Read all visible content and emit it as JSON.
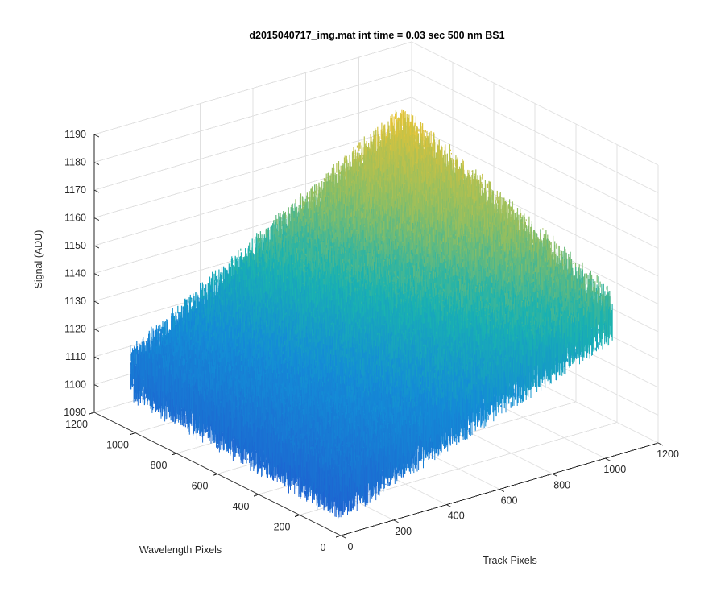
{
  "chart_data": {
    "type": "surface-3d",
    "title": "d2015040717_img.mat int time = 0.03 sec  500 nm BS1",
    "xlabel": "Track Pixels",
    "ylabel": "Wavelength Pixels",
    "zlabel": "Signal (ADU)",
    "x_ticks": [
      "0",
      "200",
      "400",
      "600",
      "800",
      "1000",
      "1200"
    ],
    "y_ticks": [
      "0",
      "200",
      "400",
      "600",
      "800",
      "1000",
      "1200"
    ],
    "z_ticks": [
      "1090",
      "1100",
      "1110",
      "1120",
      "1130",
      "1140",
      "1150",
      "1160",
      "1170",
      "1180",
      "1190"
    ],
    "xlim": [
      0,
      1200
    ],
    "ylim": [
      0,
      1200
    ],
    "zlim": [
      1090,
      1190
    ],
    "grid": true,
    "colormap": "parula",
    "surface": {
      "x_range": [
        1,
        1024
      ],
      "y_range": [
        1,
        1024
      ],
      "corner_values": {
        "x0_y0": 1105,
        "x1024_y0": 1141,
        "x0_y1024": 1111,
        "x1024_y1024": 1170
      },
      "noise_amplitude": 12
    },
    "colors": {
      "low": "#1f5fd1",
      "mid": "#1ab2b0",
      "high": "#f7c52e",
      "grid": "#e0e0e0",
      "axis": "#262626"
    }
  }
}
